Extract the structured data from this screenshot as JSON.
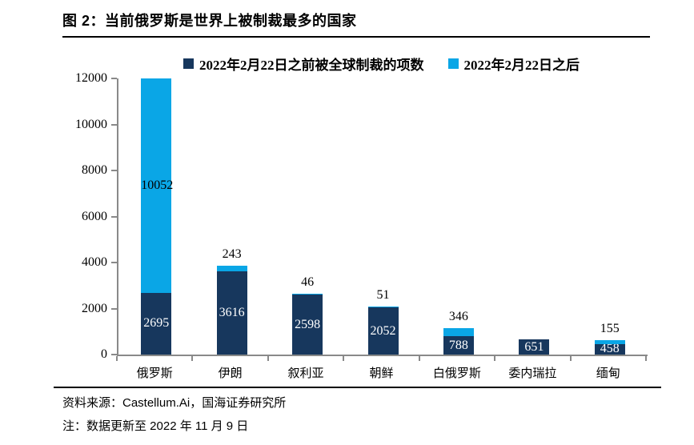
{
  "title": "图 2：当前俄罗斯是世界上被制裁最多的国家",
  "footer": {
    "source": "资料来源：Castellum.Ai，国海证券研究所",
    "note": "注：数据更新至 2022 年 11 月 9 日"
  },
  "colors": {
    "series_before": "#17375D",
    "series_after": "#0AA6E6",
    "axis": "#898989",
    "text": "#000000"
  },
  "chart_data": {
    "type": "bar",
    "stacked": true,
    "title": "当前俄罗斯是世界上被制裁最多的国家",
    "categories": [
      "俄罗斯",
      "伊朗",
      "叙利亚",
      "朝鲜",
      "白俄罗斯",
      "委内瑞拉",
      "缅甸"
    ],
    "series": [
      {
        "name": "2022年2月22日之前被全球制裁的项数",
        "color": "#17375D",
        "values": [
          2695,
          3616,
          2598,
          2052,
          788,
          651,
          458
        ]
      },
      {
        "name": "2022年2月22日之后",
        "color": "#0AA6E6",
        "values": [
          10052,
          243,
          46,
          51,
          346,
          0,
          155
        ]
      }
    ],
    "xlabel": "",
    "ylabel": "",
    "ylim": [
      0,
      12000
    ],
    "yticks": [
      0,
      2000,
      4000,
      6000,
      8000,
      10000,
      12000
    ],
    "grid": false,
    "legend_position": "top",
    "values_clipped_to_ylim": true
  }
}
